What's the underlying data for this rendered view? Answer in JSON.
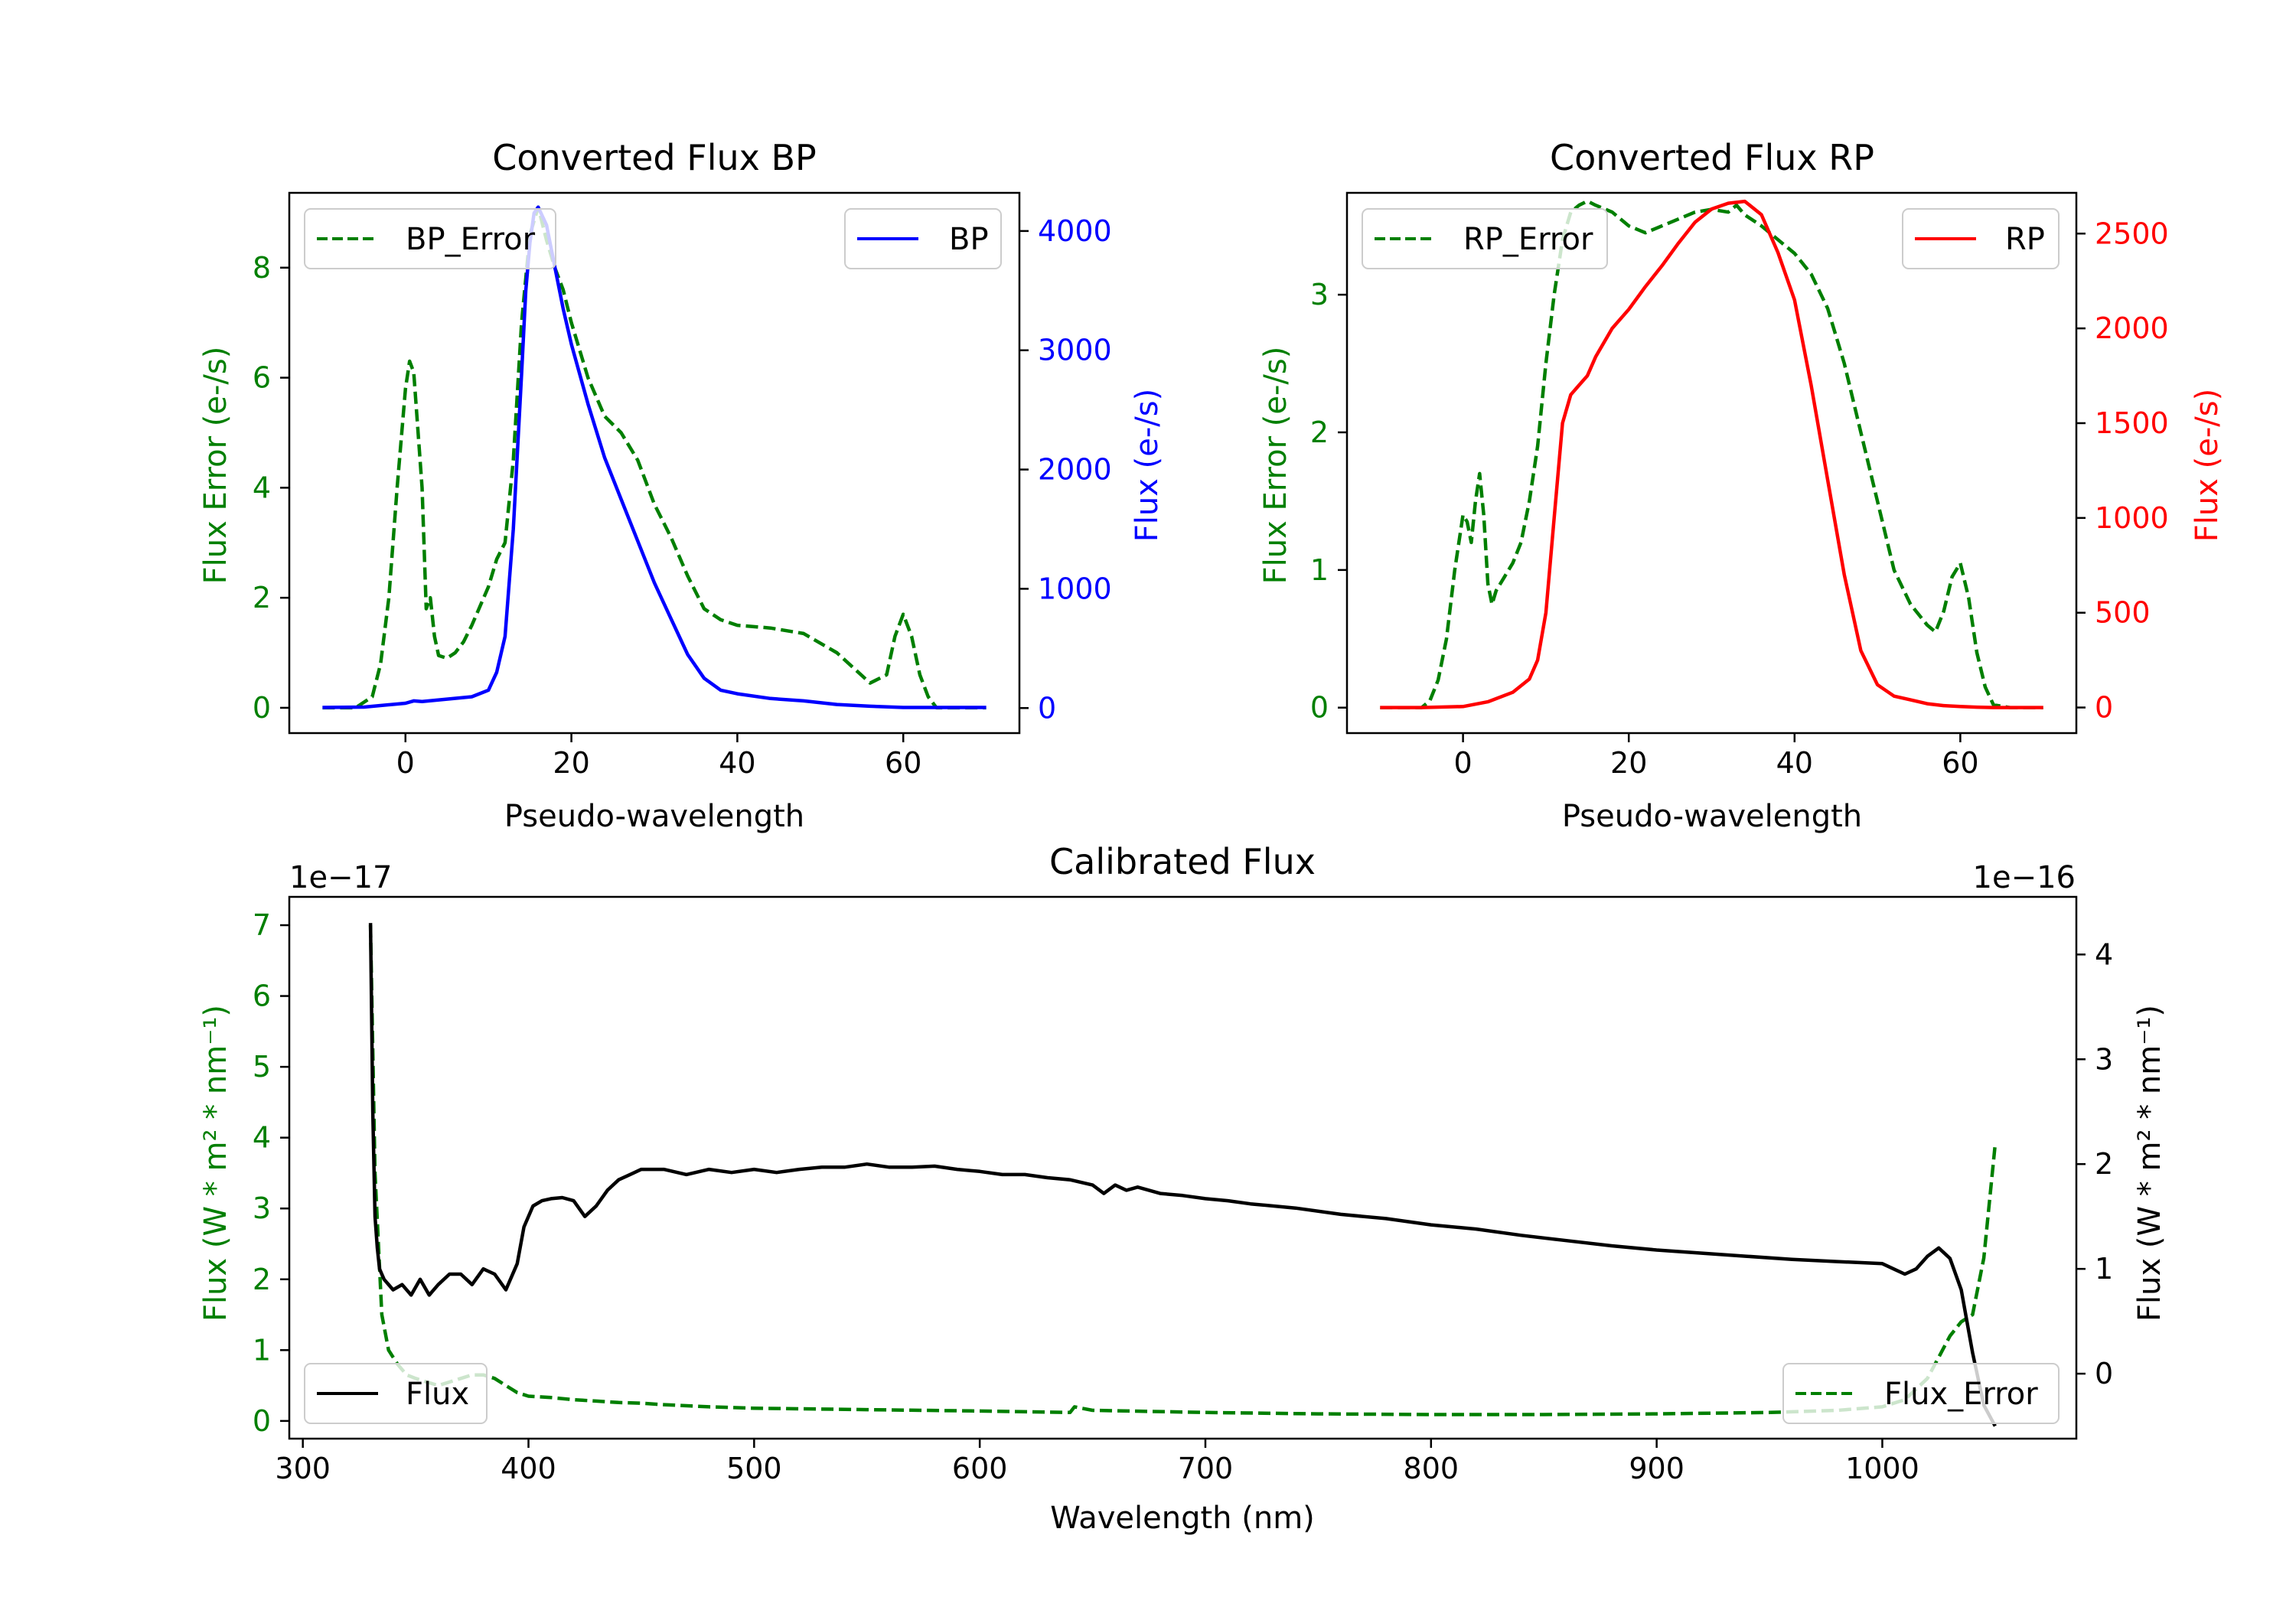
{
  "colors": {
    "error": "#007f00",
    "bp": "#0000ff",
    "rp": "#ff0000",
    "flux": "#000000",
    "axis": "#000000",
    "legend_border": "#cccccc"
  },
  "chart_data": [
    {
      "id": "bp",
      "type": "line",
      "title": "Converted Flux BP",
      "xlabel": "Pseudo-wavelength",
      "ylabel_left": "Flux Error (e-/s)",
      "ylabel_right": "Flux (e-/s)",
      "xlim": [
        -14,
        74
      ],
      "ylim_left": [
        -0.46,
        9.36
      ],
      "ylim_right": [
        -210,
        4320
      ],
      "xticks": [
        0,
        20,
        40,
        60
      ],
      "yticks_left": [
        0,
        2,
        4,
        6,
        8
      ],
      "yticks_right": [
        0,
        1000,
        2000,
        3000,
        4000
      ],
      "legend_left": {
        "label": "BP_Error",
        "position": "upper-left"
      },
      "legend_right": {
        "label": "BP",
        "position": "upper-right"
      },
      "series_error": {
        "name": "BP_Error",
        "x": [
          -10,
          -6,
          -4,
          -3,
          -2,
          -1,
          0,
          0.5,
          1,
          2,
          2.5,
          3,
          3.5,
          4,
          5,
          6,
          7,
          8,
          10,
          11,
          12,
          13,
          14,
          15,
          16,
          17,
          18,
          19,
          20,
          22,
          24,
          26,
          28,
          30,
          32,
          34,
          36,
          38,
          40,
          44,
          48,
          52,
          56,
          58,
          59,
          60,
          61,
          62,
          63,
          64,
          66,
          70
        ],
        "y": [
          0,
          0,
          0.2,
          0.8,
          2.0,
          4.0,
          5.8,
          6.3,
          6.1,
          4.0,
          1.8,
          2.0,
          1.3,
          0.95,
          0.9,
          1.0,
          1.2,
          1.5,
          2.2,
          2.7,
          3.0,
          4.5,
          7.0,
          8.6,
          9.1,
          8.5,
          8.0,
          7.6,
          7.0,
          6.0,
          5.3,
          5.0,
          4.5,
          3.7,
          3.1,
          2.4,
          1.8,
          1.6,
          1.5,
          1.45,
          1.35,
          1.0,
          0.45,
          0.6,
          1.3,
          1.7,
          1.3,
          0.6,
          0.2,
          0,
          0,
          0
        ]
      },
      "series_flux": {
        "name": "BP",
        "x": [
          -10,
          -5,
          0,
          1,
          2,
          5,
          8,
          10,
          11,
          12,
          13,
          14,
          14.5,
          15,
          15.5,
          16,
          17,
          18,
          19,
          20,
          22,
          24,
          26,
          28,
          30,
          32,
          34,
          36,
          38,
          40,
          44,
          48,
          52,
          56,
          60,
          62,
          65,
          70
        ],
        "y": [
          5,
          8,
          40,
          60,
          55,
          75,
          95,
          150,
          300,
          600,
          1500,
          2800,
          3500,
          3900,
          4150,
          4200,
          4050,
          3700,
          3350,
          3050,
          2550,
          2100,
          1750,
          1400,
          1050,
          750,
          450,
          250,
          150,
          120,
          80,
          60,
          30,
          15,
          5,
          5,
          5,
          5
        ]
      }
    },
    {
      "id": "rp",
      "type": "line",
      "title": "Converted Flux RP",
      "xlabel": "Pseudo-wavelength",
      "ylabel_left": "Flux Error (e-/s)",
      "ylabel_right": "Flux (e-/s)",
      "xlim": [
        -14,
        74
      ],
      "ylim_left": [
        -0.185,
        3.74
      ],
      "ylim_right": [
        -135,
        2715
      ],
      "xticks": [
        0,
        20,
        40,
        60
      ],
      "yticks_left": [
        0,
        1,
        2,
        3
      ],
      "yticks_right": [
        0,
        500,
        1000,
        1500,
        2000,
        2500
      ],
      "legend_left": {
        "label": "RP_Error",
        "position": "upper-left"
      },
      "legend_right": {
        "label": "RP",
        "position": "upper-right"
      },
      "series_error": {
        "name": "RP_Error",
        "x": [
          -10,
          -5,
          -4,
          -3,
          -2,
          -1,
          0,
          0.5,
          1,
          1.5,
          2,
          2.5,
          3,
          3.5,
          4,
          5,
          6,
          7,
          8,
          9,
          10,
          11,
          12,
          13,
          14,
          15,
          16,
          18,
          20,
          22,
          24,
          26,
          28,
          30,
          32,
          33,
          34,
          36,
          38,
          40,
          42,
          44,
          46,
          48,
          50,
          52,
          54,
          56,
          57,
          58,
          59,
          60,
          61,
          62,
          63,
          64,
          66,
          70
        ],
        "y": [
          0,
          0,
          0.05,
          0.2,
          0.5,
          1.0,
          1.4,
          1.35,
          1.2,
          1.5,
          1.7,
          1.4,
          0.9,
          0.75,
          0.85,
          0.95,
          1.05,
          1.2,
          1.5,
          1.9,
          2.5,
          3.0,
          3.4,
          3.6,
          3.65,
          3.68,
          3.65,
          3.6,
          3.5,
          3.45,
          3.5,
          3.55,
          3.6,
          3.62,
          3.6,
          3.65,
          3.58,
          3.5,
          3.4,
          3.3,
          3.15,
          2.9,
          2.5,
          2.0,
          1.5,
          1.0,
          0.75,
          0.6,
          0.55,
          0.7,
          0.95,
          1.05,
          0.8,
          0.4,
          0.15,
          0.02,
          0,
          0
        ]
      },
      "series_flux": {
        "name": "RP",
        "x": [
          -10,
          -5,
          0,
          3,
          6,
          8,
          9,
          10,
          11,
          12,
          13,
          14,
          15,
          16,
          18,
          20,
          22,
          24,
          26,
          28,
          30,
          32,
          34,
          36,
          38,
          40,
          42,
          44,
          46,
          48,
          50,
          52,
          54,
          56,
          58,
          60,
          62,
          64,
          66,
          70
        ],
        "y": [
          0,
          0,
          5,
          30,
          80,
          150,
          250,
          500,
          1000,
          1500,
          1650,
          1700,
          1750,
          1850,
          2000,
          2100,
          2220,
          2330,
          2450,
          2560,
          2630,
          2660,
          2670,
          2600,
          2400,
          2150,
          1700,
          1200,
          700,
          300,
          120,
          60,
          40,
          20,
          10,
          5,
          2,
          0,
          0,
          0
        ]
      }
    },
    {
      "id": "cal",
      "type": "line",
      "title": "Calibrated Flux",
      "xlabel": "Wavelength (nm)",
      "ylabel_left": "Flux (W * m² * nm⁻¹)",
      "ylabel_right": "Flux (W * m² * nm⁻¹)",
      "offset_left": "1e−17",
      "offset_right": "1e−16",
      "xlim": [
        294,
        1086
      ],
      "ylim_left": [
        -0.25,
        7.4
      ],
      "ylim_right": [
        -0.62,
        4.55
      ],
      "xticks": [
        300,
        400,
        500,
        600,
        700,
        800,
        900,
        1000
      ],
      "yticks_left": [
        0,
        1,
        2,
        3,
        4,
        5,
        6,
        7
      ],
      "yticks_right": [
        0,
        1,
        2,
        3,
        4
      ],
      "legend_left": {
        "label": "Flux",
        "position": "lower-left"
      },
      "legend_right": {
        "label": "Flux_Error",
        "position": "lower-right"
      },
      "series_error": {
        "name": "Flux_Error",
        "x": [
          330,
          332,
          335,
          338,
          342,
          346,
          350,
          355,
          360,
          365,
          370,
          375,
          380,
          385,
          390,
          395,
          400,
          410,
          420,
          430,
          440,
          450,
          460,
          480,
          500,
          550,
          600,
          640,
          642,
          645,
          650,
          700,
          750,
          800,
          850,
          900,
          950,
          980,
          1000,
          1010,
          1020,
          1025,
          1030,
          1035,
          1040,
          1045,
          1050
        ],
        "y": [
          7.0,
          3.5,
          1.5,
          1.0,
          0.8,
          0.65,
          0.6,
          0.55,
          0.5,
          0.55,
          0.6,
          0.65,
          0.65,
          0.6,
          0.5,
          0.4,
          0.35,
          0.33,
          0.3,
          0.28,
          0.26,
          0.25,
          0.23,
          0.2,
          0.18,
          0.16,
          0.14,
          0.12,
          0.2,
          0.18,
          0.15,
          0.12,
          0.1,
          0.09,
          0.09,
          0.1,
          0.12,
          0.15,
          0.2,
          0.3,
          0.6,
          0.9,
          1.2,
          1.4,
          1.5,
          2.3,
          3.9
        ]
      },
      "series_flux": {
        "name": "Flux",
        "x": [
          330,
          331,
          332,
          333,
          334,
          336,
          340,
          344,
          348,
          352,
          356,
          360,
          365,
          370,
          375,
          380,
          385,
          390,
          395,
          398,
          402,
          406,
          410,
          415,
          420,
          425,
          430,
          435,
          440,
          445,
          450,
          455,
          460,
          470,
          480,
          490,
          500,
          510,
          520,
          530,
          540,
          550,
          560,
          570,
          580,
          590,
          600,
          610,
          620,
          630,
          640,
          650,
          655,
          660,
          665,
          670,
          680,
          690,
          700,
          710,
          720,
          740,
          760,
          780,
          800,
          820,
          840,
          860,
          880,
          900,
          920,
          940,
          960,
          980,
          1000,
          1005,
          1010,
          1015,
          1020,
          1025,
          1030,
          1035,
          1040,
          1045,
          1050
        ],
        "y": [
          4.3,
          2.5,
          1.5,
          1.2,
          1.0,
          0.9,
          0.8,
          0.85,
          0.75,
          0.9,
          0.75,
          0.85,
          0.95,
          0.95,
          0.85,
          1.0,
          0.95,
          0.8,
          1.05,
          1.4,
          1.6,
          1.65,
          1.67,
          1.68,
          1.65,
          1.5,
          1.6,
          1.75,
          1.85,
          1.9,
          1.95,
          1.95,
          1.95,
          1.9,
          1.95,
          1.92,
          1.95,
          1.92,
          1.95,
          1.97,
          1.97,
          2.0,
          1.97,
          1.97,
          1.98,
          1.95,
          1.93,
          1.9,
          1.9,
          1.87,
          1.85,
          1.8,
          1.72,
          1.8,
          1.75,
          1.78,
          1.72,
          1.7,
          1.67,
          1.65,
          1.62,
          1.58,
          1.52,
          1.48,
          1.42,
          1.38,
          1.32,
          1.27,
          1.22,
          1.18,
          1.15,
          1.12,
          1.09,
          1.07,
          1.05,
          1.0,
          0.95,
          1.0,
          1.12,
          1.2,
          1.1,
          0.8,
          0.2,
          -0.3,
          -0.5
        ]
      }
    }
  ]
}
